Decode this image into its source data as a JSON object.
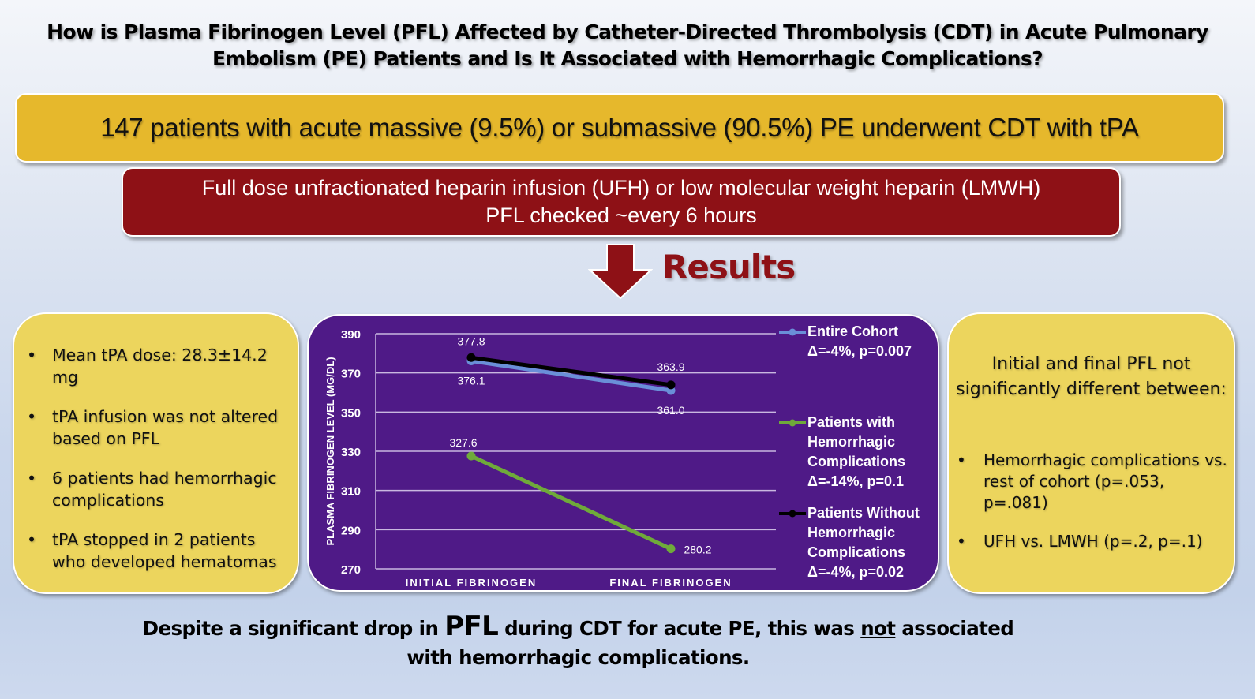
{
  "title": {
    "line1": "How is Plasma Fibrinogen Level (PFL) Affected by Catheter-Directed Thrombolysis (CDT) in Acute Pulmonary",
    "line2": "Embolism (PE) Patients and Is It Associated with Hemorrhagic Complications?"
  },
  "population_box": {
    "text": "147 patients with acute massive (9.5%) or submassive (90.5%) PE underwent CDT with tPA",
    "color": "#e6b82c"
  },
  "method_box": {
    "line1": "Full dose unfractionated heparin infusion (UFH) or low molecular weight heparin (LMWH)",
    "line2": "PFL checked ~every 6 hours",
    "color": "#8e1116"
  },
  "results_header": {
    "icon": "down-arrow-icon",
    "label": "Results",
    "color": "#8e1116"
  },
  "left_card": {
    "bullet_glyph": "•",
    "items": [
      "Mean tPA dose: 28.3±14.2 mg",
      "tPA infusion was not altered based on PFL",
      "6 patients had hemorrhagic complications",
      "tPA stopped in 2 patients who developed hematomas"
    ]
  },
  "right_card": {
    "heading": "Initial and final PFL not significantly different between:",
    "bullet_glyph": "•",
    "items": [
      "Hemorrhagic complications vs. rest of cohort (p=.053, p=.081)",
      "UFH vs. LMWH (p=.2, p=.1)"
    ]
  },
  "conclusion": {
    "part1": "Despite a significant drop in ",
    "emph": "PFL",
    "part2": " during CDT for acute PE, this was ",
    "underline": "not",
    "part3": " associated",
    "line2": "with hemorrhagic complications."
  },
  "chart_data": {
    "type": "line",
    "title": "",
    "xlabel": "",
    "ylabel": "PLASMA FIBRINOGEN LEVEL (MG/DL)",
    "categories": [
      "INITIAL FIBRINOGEN",
      "FINAL FIBRINOGEN"
    ],
    "ylim": [
      270,
      390
    ],
    "yticks": [
      270,
      290,
      310,
      330,
      350,
      370,
      390
    ],
    "grid": true,
    "legend_position": "right",
    "background": "#4f1a87",
    "series": [
      {
        "name": "Entire Cohort",
        "stat": "Δ=-4%, p=0.007",
        "color": "#6a8fd8",
        "values": [
          376.1,
          361.0
        ],
        "labels": [
          "376.1",
          "361.0"
        ]
      },
      {
        "name": "Patients with Hemorrhagic Complications",
        "stat": "Δ=-14%, p=0.1",
        "color": "#6faa3a",
        "values": [
          327.6,
          280.2
        ],
        "labels": [
          "327.6",
          "280.2"
        ]
      },
      {
        "name": "Patients Without Hemorrhagic Complications",
        "stat": "Δ=-4%, p=0.02",
        "color": "#000000",
        "values": [
          377.8,
          363.9
        ],
        "labels": [
          "377.8",
          "363.9"
        ]
      }
    ],
    "legend": [
      {
        "lines": [
          "Entire Cohort",
          "Δ=-4%, p=0.007"
        ]
      },
      {
        "lines": [
          "Patients with",
          "Hemorrhagic",
          "Complications",
          "Δ=-14%, p=0.1"
        ]
      },
      {
        "lines": [
          "Patients Without",
          "Hemorrhagic",
          "Complications",
          "Δ=-4%, p=0.02"
        ]
      }
    ]
  }
}
